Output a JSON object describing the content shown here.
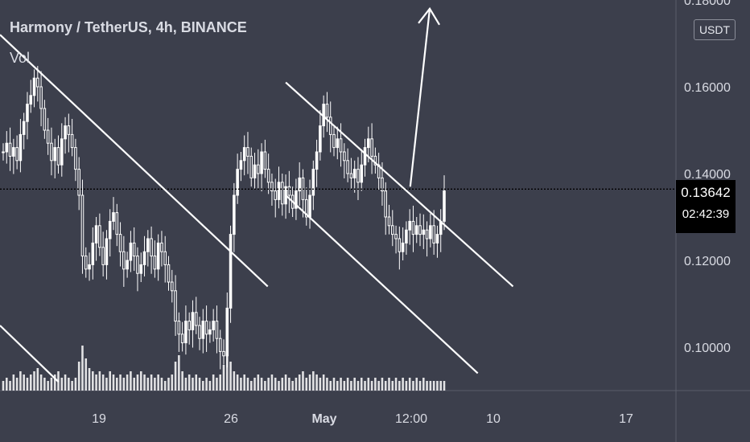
{
  "header": {
    "title": "Harmony / TetherUS, 4h, BINANCE",
    "volume_label": "Vol",
    "currency": "USDT"
  },
  "price_label": {
    "price": "0.13642",
    "countdown": "02:42:39"
  },
  "colors": {
    "background": "#3c3f4c",
    "candles": "#ffffff",
    "axis_text": "#d9dbe3",
    "price_box": "#000000"
  },
  "chart_data": {
    "type": "candlestick",
    "symbol": "ONE/USDT",
    "interval": "4h",
    "ylim": [
      0.09,
      0.18
    ],
    "y_ticks": [
      "0.10000",
      "0.12000",
      "0.14000",
      "0.16000",
      "0.18000"
    ],
    "x_ticks": [
      "19",
      "26",
      "May",
      "12:00",
      "10",
      "17"
    ],
    "current_price": 0.13642,
    "series": [
      {
        "values": [
          0.145,
          0.147,
          0.144,
          0.146,
          0.143,
          0.149,
          0.152,
          0.156,
          0.158,
          0.162,
          0.16,
          0.155,
          0.15,
          0.147,
          0.143,
          0.146,
          0.142,
          0.148,
          0.151,
          0.149,
          0.146,
          0.141,
          0.135,
          0.121,
          0.118,
          0.119,
          0.124,
          0.128,
          0.123,
          0.119,
          0.125,
          0.129,
          0.131,
          0.126,
          0.122,
          0.118,
          0.12,
          0.124,
          0.121,
          0.117,
          0.119,
          0.122,
          0.125,
          0.121,
          0.118,
          0.124,
          0.122,
          0.119,
          0.115,
          0.113,
          0.106,
          0.103,
          0.101,
          0.106,
          0.104,
          0.108,
          0.105,
          0.102,
          0.106,
          0.103,
          0.104,
          0.106,
          0.102,
          0.099,
          0.098,
          0.109,
          0.126,
          0.135,
          0.141,
          0.143,
          0.146,
          0.144,
          0.139,
          0.142,
          0.14,
          0.145,
          0.141,
          0.138,
          0.136,
          0.134,
          0.138,
          0.133,
          0.137,
          0.135,
          0.132,
          0.136,
          0.139,
          0.134,
          0.13,
          0.135,
          0.141,
          0.145,
          0.151,
          0.156,
          0.153,
          0.149,
          0.146,
          0.148,
          0.145,
          0.143,
          0.14,
          0.139,
          0.141,
          0.138,
          0.142,
          0.146,
          0.148,
          0.144,
          0.142,
          0.139,
          0.136,
          0.13,
          0.128,
          0.126,
          0.125,
          0.122,
          0.124,
          0.127,
          0.129,
          0.126,
          0.128,
          0.126,
          0.127,
          0.125,
          0.128,
          0.124,
          0.126,
          0.129,
          0.136
        ]
      }
    ],
    "volume": [
      3,
      4,
      3,
      5,
      4,
      6,
      5,
      4,
      5,
      6,
      7,
      5,
      4,
      3,
      4,
      5,
      6,
      4,
      5,
      4,
      3,
      4,
      9,
      14,
      10,
      7,
      6,
      5,
      6,
      5,
      4,
      6,
      5,
      4,
      5,
      4,
      5,
      6,
      4,
      5,
      6,
      5,
      4,
      5,
      4,
      5,
      4,
      3,
      4,
      5,
      9,
      11,
      6,
      4,
      5,
      4,
      5,
      4,
      3,
      4,
      3,
      5,
      4,
      5,
      8,
      12,
      9,
      6,
      5,
      4,
      5,
      4,
      3,
      4,
      5,
      4,
      3,
      4,
      5,
      4,
      3,
      4,
      5,
      4,
      3,
      4,
      5,
      6,
      4,
      5,
      6,
      5,
      4,
      5,
      4,
      3,
      4,
      3,
      4,
      3,
      4,
      3,
      4,
      3,
      4,
      3,
      4,
      3,
      4,
      3,
      4,
      3,
      4,
      3,
      4,
      3,
      4,
      3,
      4,
      3,
      4,
      3,
      4,
      3,
      3,
      3,
      3,
      3,
      3
    ]
  },
  "annotations": {
    "trendline_1": [
      [
        0.0,
        0.172
      ],
      [
        0.357,
        0.114
      ]
    ],
    "trendline_2": [
      [
        0.0,
        0.105
      ],
      [
        0.078,
        0.092
      ]
    ],
    "channel_upper": [
      [
        0.381,
        0.161
      ],
      [
        0.684,
        0.114
      ]
    ],
    "channel_lower": [
      [
        0.381,
        0.135
      ],
      [
        0.637,
        0.094
      ]
    ],
    "arrow": [
      [
        0.547,
        0.137
      ],
      [
        0.573,
        0.178
      ]
    ]
  }
}
